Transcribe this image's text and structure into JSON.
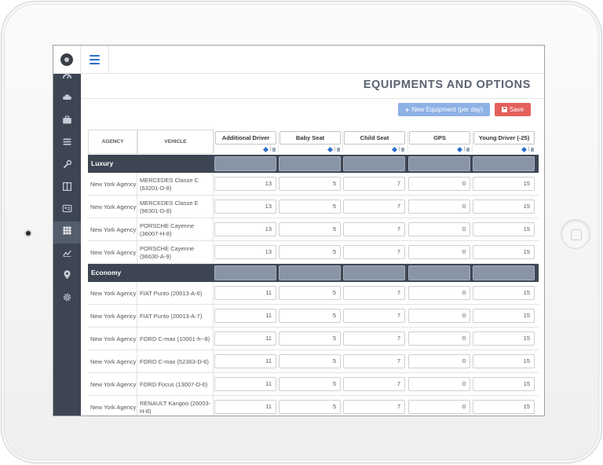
{
  "page": {
    "title": "EQUIPMENTS AND OPTIONS"
  },
  "toolbar": {
    "new_label": "New Equipment (per day)",
    "save_label": "Save"
  },
  "table": {
    "col_agency": "AGENCY",
    "col_vehicle": "VEHICLE",
    "equipments": [
      "Additional Driver",
      "Baby Seat",
      "Child Seat",
      "GPS",
      "Young Driver (-25)"
    ],
    "categories": [
      {
        "name": "Luxury",
        "rows": [
          {
            "agency": "New York Agency",
            "vehicle": "MERCEDES Classe C (63201-D-8)",
            "values": [
              "13",
              "5",
              "7",
              "0",
              "15"
            ]
          },
          {
            "agency": "New York Agency",
            "vehicle": "MERCEDES Classe E (96301-D-8)",
            "values": [
              "13",
              "5",
              "7",
              "0",
              "15"
            ]
          },
          {
            "agency": "New York Agency",
            "vehicle": "PORSCHE Cayenne (36007-H-8)",
            "values": [
              "13",
              "5",
              "7",
              "0",
              "15"
            ]
          },
          {
            "agency": "New York Agency",
            "vehicle": "PORSCHE Cayenne (96630-A-9)",
            "values": [
              "13",
              "5",
              "7",
              "0",
              "15"
            ]
          }
        ]
      },
      {
        "name": "Economy",
        "rows": [
          {
            "agency": "New York Agency",
            "vehicle": "FIAT Punto (20013-A-6)",
            "values": [
              "11",
              "5",
              "7",
              "0",
              "15"
            ]
          },
          {
            "agency": "New York Agency",
            "vehicle": "FIAT Punto (20013-A-7)",
            "values": [
              "11",
              "5",
              "7",
              "0",
              "15"
            ]
          },
          {
            "agency": "New York Agency",
            "vehicle": "FORD C-max (10001-h--8)",
            "values": [
              "11",
              "5",
              "7",
              "0",
              "15"
            ]
          },
          {
            "agency": "New York Agency",
            "vehicle": "FORD C-max (52363-D-6)",
            "values": [
              "11",
              "5",
              "7",
              "0",
              "15"
            ]
          },
          {
            "agency": "New York Agency",
            "vehicle": "FORD Focus (13007-D-6)",
            "values": [
              "11",
              "5",
              "7",
              "0",
              "15"
            ]
          },
          {
            "agency": "New York Agency",
            "vehicle": "RENAULT Kangoo (26003-H-8)",
            "values": [
              "11",
              "5",
              "7",
              "0",
              "15"
            ]
          }
        ]
      }
    ]
  },
  "sidebar": {
    "items": [
      {
        "icon": "dashboard-icon"
      },
      {
        "icon": "car-icon"
      },
      {
        "icon": "briefcase-icon"
      },
      {
        "icon": "list-icon"
      },
      {
        "icon": "wrench-icon"
      },
      {
        "icon": "columns-icon"
      },
      {
        "icon": "id-card-icon"
      },
      {
        "icon": "table-icon",
        "active": true
      },
      {
        "icon": "chart-line-icon"
      },
      {
        "icon": "map-marker-icon"
      },
      {
        "icon": "gear-icon"
      }
    ]
  },
  "colors": {
    "sidebar": "#3d4553",
    "accent": "#2d6fcc",
    "new_button": "#8eb1e6",
    "save_button": "#e3605c",
    "category_cell": "#8895a6"
  }
}
